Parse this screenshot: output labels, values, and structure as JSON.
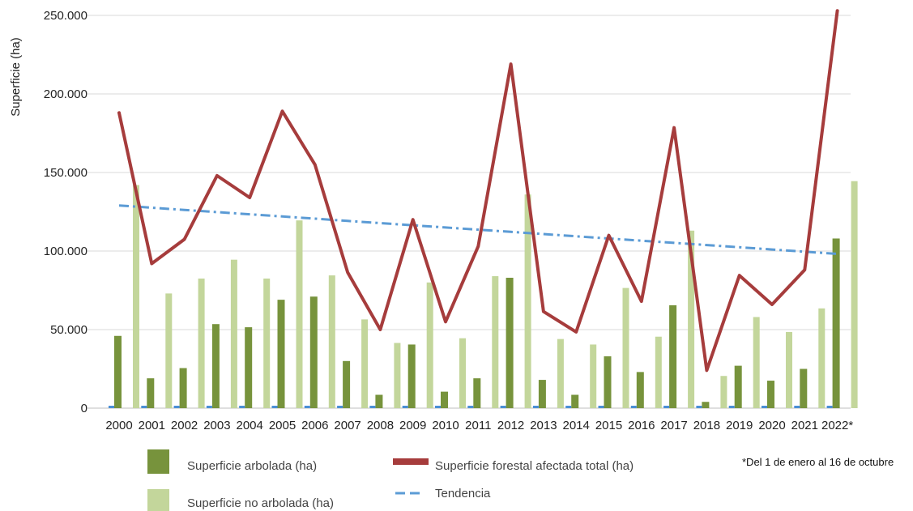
{
  "chart_data": {
    "type": "bar",
    "ylabel": "Superficie (ha)",
    "ylim": [
      0,
      250000
    ],
    "y_ticks": [
      0,
      50000,
      100000,
      150000,
      200000,
      250000
    ],
    "y_tick_labels": [
      "0",
      "50.000",
      "100.000",
      "150.000",
      "200.000",
      "250.000"
    ],
    "categories": [
      "2000",
      "2001",
      "2002",
      "2003",
      "2004",
      "2005",
      "2006",
      "2007",
      "2008",
      "2009",
      "2010",
      "2011",
      "2012",
      "2013",
      "2014",
      "2015",
      "2016",
      "2017",
      "2018",
      "2019",
      "2020",
      "2021",
      "2022*"
    ],
    "grid": true,
    "legend_position": "bottom",
    "series": [
      {
        "name": "Superficie arbolada (ha)",
        "type": "bar",
        "color": "#77933c",
        "values": [
          46000,
          19000,
          25500,
          53500,
          51500,
          69000,
          71000,
          30000,
          8500,
          40500,
          10500,
          19000,
          83000,
          18000,
          8500,
          33000,
          23000,
          65500,
          4000,
          27000,
          17500,
          25000,
          108000
        ]
      },
      {
        "name": "Superficie no arbolada (ha)",
        "type": "bar",
        "color": "#c3d69b",
        "values": [
          142000,
          73000,
          82500,
          94500,
          82500,
          119500,
          84500,
          56500,
          41500,
          80000,
          44500,
          84000,
          136000,
          44000,
          40500,
          76500,
          45500,
          113000,
          20500,
          58000,
          48500,
          63500,
          144500
        ]
      },
      {
        "name": "Superficie forestal afectada total (ha)",
        "type": "line",
        "color": "#a63c3c",
        "values": [
          188000,
          92000,
          107500,
          148000,
          134000,
          189000,
          155000,
          86500,
          50000,
          120000,
          55000,
          103000,
          219000,
          61500,
          48500,
          110000,
          68000,
          178500,
          24000,
          84500,
          66000,
          88000,
          253000
        ]
      },
      {
        "name": "Tendencia",
        "type": "trend",
        "color": "#5b9bd5",
        "values": [
          129000,
          127600,
          126200,
          124800,
          123400,
          122000,
          120600,
          119200,
          117800,
          116400,
          115000,
          113600,
          112200,
          110800,
          109400,
          108000,
          106600,
          105200,
          103800,
          102400,
          101000,
          99600,
          98200
        ]
      }
    ],
    "annotation": "*Del 1 de enero al 16 de octubre"
  },
  "colors": {
    "arbolada": "#77933c",
    "no_arbolada": "#c3d69b",
    "total": "#a63c3c",
    "tendencia": "#5b9bd5",
    "base_marker": "#4a8fd6",
    "grid": "#d9d9d9"
  }
}
